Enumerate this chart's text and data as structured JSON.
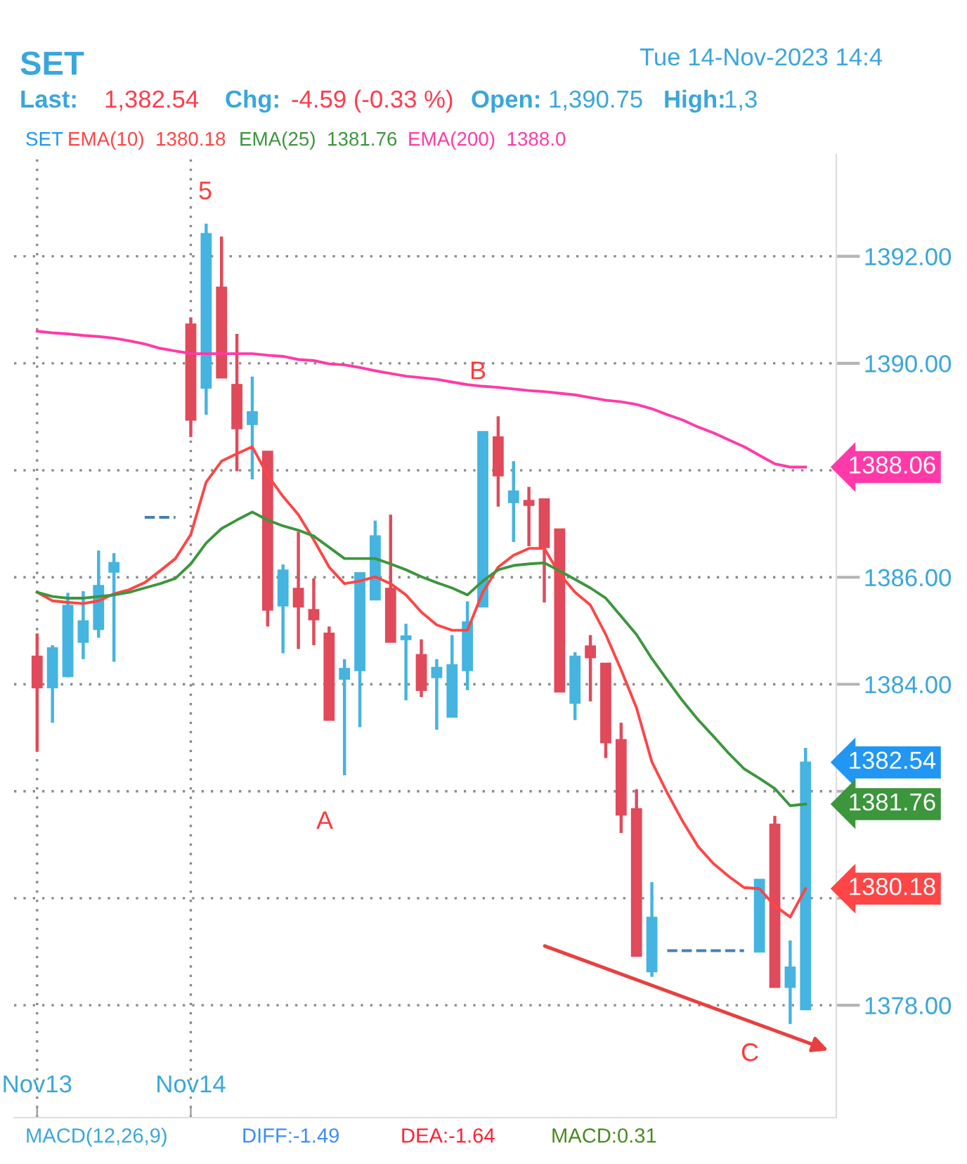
{
  "chart_data": {
    "type": "candlestick",
    "title": "SET",
    "categories": [
      "Nov13",
      null,
      null,
      null,
      null,
      null,
      null,
      null,
      null,
      null,
      "Nov14",
      null,
      null,
      null,
      null,
      null,
      null,
      null,
      null,
      null,
      null,
      null,
      null,
      null,
      null,
      null,
      null,
      null,
      null,
      null,
      null,
      null,
      null,
      null,
      null,
      null,
      null,
      null,
      null,
      null,
      null,
      null,
      null,
      null,
      null,
      null,
      null,
      null,
      null,
      null,
      null
    ],
    "series": [
      {
        "name": "SET",
        "color": "#2196f3",
        "ohlc": [
          [
            1384.52,
            1384.95,
            1382.75,
            1383.94
          ],
          [
            1383.94,
            1384.73,
            1383.28,
            1384.68
          ],
          [
            1384.15,
            1385.71,
            1384.13,
            1385.47
          ],
          [
            1384.79,
            1385.74,
            1384.47,
            1385.18
          ],
          [
            1385.03,
            1386.5,
            1384.87,
            1385.84
          ],
          [
            1386.1,
            1386.45,
            1384.42,
            1386.27
          ],
          null,
          null,
          null,
          null,
          [
            1390.73,
            1390.86,
            1388.62,
            1388.94
          ],
          [
            1389.54,
            1392.61,
            1389.04,
            1392.42
          ],
          [
            1391.42,
            1392.37,
            1389.73,
            1389.73
          ],
          [
            1389.6,
            1390.55,
            1387.98,
            1388.78
          ],
          [
            1388.86,
            1389.75,
            1387.83,
            1389.09
          ],
          [
            1388.35,
            1388.35,
            1385.08,
            1385.39
          ],
          [
            1385.47,
            1386.24,
            1384.58,
            1386.13
          ],
          [
            1385.79,
            1386.85,
            1384.66,
            1385.45
          ],
          [
            1385.39,
            1385.98,
            1384.73,
            1385.21
          ],
          [
            1384.95,
            1385.08,
            1383.33,
            1383.33
          ],
          [
            1384.1,
            1384.47,
            1382.3,
            1384.29
          ],
          [
            1384.26,
            1386.08,
            1383.2,
            1386.08
          ],
          [
            1385.58,
            1387.06,
            1385.58,
            1386.77
          ],
          [
            1385.79,
            1387.17,
            1384.79,
            1384.79
          ],
          [
            1384.84,
            1385.13,
            1383.7,
            1384.9
          ],
          [
            1384.55,
            1384.84,
            1383.76,
            1383.89
          ],
          [
            1384.13,
            1384.47,
            1383.15,
            1384.31
          ],
          [
            1383.39,
            1384.92,
            1383.39,
            1384.36
          ],
          [
            1384.26,
            1385.55,
            1383.89,
            1385.16
          ],
          [
            1385.45,
            1388.72,
            1385.45,
            1388.72
          ],
          [
            1388.62,
            1389.01,
            1387.32,
            1387.9
          ],
          [
            1387.4,
            1388.17,
            1386.66,
            1387.61
          ],
          [
            1387.43,
            1387.69,
            1386.58,
            1387.35
          ],
          [
            1387.46,
            1387.46,
            1385.53,
            1386.56
          ],
          [
            1386.9,
            1386.9,
            1383.86,
            1383.86
          ],
          [
            1383.65,
            1384.6,
            1383.33,
            1384.52
          ],
          [
            1384.71,
            1384.92,
            1383.68,
            1384.5
          ],
          [
            1384.39,
            1384.39,
            1382.62,
            1382.91
          ],
          [
            1382.96,
            1383.28,
            1381.22,
            1381.56
          ],
          [
            1381.67,
            1382.04,
            1378.92,
            1378.92
          ],
          [
            1378.63,
            1380.3,
            1378.53,
            1379.64
          ],
          null,
          null,
          null,
          null,
          null,
          null,
          [
            1379.0,
            1380.35,
            1379.0,
            1380.35
          ],
          [
            1381.38,
            1381.54,
            1378.34,
            1378.34
          ],
          [
            1378.34,
            1379.21,
            1377.65,
            1378.71
          ],
          [
            1377.92,
            1382.81,
            1377.92,
            1382.54
          ]
        ],
        "colors": [
          "#e04a5a",
          "#45b4e0",
          "#45b4e0",
          "#45b4e0",
          "#45b4e0",
          "#45b4e0",
          null,
          null,
          null,
          null,
          "#e04a5a",
          "#45b4e0",
          "#e04a5a",
          "#e04a5a",
          "#45b4e0",
          "#e04a5a",
          "#45b4e0",
          "#e04a5a",
          "#e04a5a",
          "#e04a5a",
          "#45b4e0",
          "#45b4e0",
          "#45b4e0",
          "#e04a5a",
          "#45b4e0",
          "#e04a5a",
          "#45b4e0",
          "#45b4e0",
          "#45b4e0",
          "#45b4e0",
          "#e04a5a",
          "#45b4e0",
          "#e04a5a",
          "#e04a5a",
          "#e04a5a",
          "#45b4e0",
          "#e04a5a",
          "#e04a5a",
          "#e04a5a",
          "#e04a5a",
          "#45b4e0",
          null,
          null,
          null,
          null,
          null,
          null,
          "#45b4e0",
          "#e04a5a",
          "#45b4e0",
          "#45b4e0"
        ],
        "value_labels": [
          null,
          null,
          null,
          null,
          null,
          null,
          null,
          null,
          null,
          null,
          null,
          null,
          null,
          null,
          null,
          null,
          null,
          null,
          null,
          null,
          null,
          null,
          null,
          null,
          null,
          null,
          null,
          null,
          null,
          null,
          null,
          null,
          null,
          null,
          null,
          null,
          null,
          null,
          null,
          null,
          null,
          null,
          null,
          null,
          null,
          null,
          null,
          null,
          null,
          null,
          "1382.54"
        ]
      },
      {
        "name": "EMA(10)  1380.18",
        "type": "line",
        "color": "#ff4545",
        "values": [
          1385.72,
          1385.56,
          1385.53,
          1385.51,
          1385.56,
          1385.69,
          1385.77,
          1385.9,
          1386.12,
          1386.35,
          1386.8,
          1387.78,
          1388.17,
          1388.31,
          1388.44,
          1387.91,
          1387.51,
          1387.17,
          1386.7,
          1386.19,
          1385.88,
          1385.93,
          1386.01,
          1385.88,
          1385.67,
          1385.35,
          1385.11,
          1385.01,
          1385.01,
          1385.72,
          1386.19,
          1386.41,
          1386.54,
          1386.54,
          1386.06,
          1385.72,
          1385.48,
          1384.93,
          1384.27,
          1383.56,
          1382.55,
          1381.97,
          1381.44,
          1380.97,
          1380.65,
          1380.41,
          1380.2,
          1380.18,
          1379.86,
          1379.65,
          1380.18
        ],
        "value_labels": [
          null,
          null,
          null,
          null,
          null,
          null,
          null,
          null,
          null,
          null,
          null,
          null,
          null,
          null,
          null,
          null,
          null,
          null,
          null,
          null,
          null,
          null,
          null,
          null,
          null,
          null,
          null,
          null,
          null,
          null,
          null,
          null,
          null,
          null,
          null,
          null,
          null,
          null,
          null,
          null,
          null,
          null,
          null,
          null,
          null,
          null,
          null,
          null,
          null,
          null,
          "1380.18"
        ]
      },
      {
        "name": "EMA(25)  1381.76",
        "type": "line",
        "color": "#3c963c",
        "values": [
          1385.72,
          1385.64,
          1385.61,
          1385.61,
          1385.64,
          1385.67,
          1385.72,
          1385.8,
          1385.88,
          1385.98,
          1386.25,
          1386.64,
          1386.91,
          1387.07,
          1387.22,
          1387.07,
          1386.96,
          1386.88,
          1386.77,
          1386.56,
          1386.35,
          1386.35,
          1386.35,
          1386.25,
          1386.14,
          1386.01,
          1385.9,
          1385.8,
          1385.67,
          1385.93,
          1386.14,
          1386.22,
          1386.25,
          1386.27,
          1386.12,
          1385.96,
          1385.8,
          1385.61,
          1385.27,
          1384.93,
          1384.48,
          1384.08,
          1383.69,
          1383.34,
          1383.03,
          1382.71,
          1382.42,
          1382.24,
          1382.05,
          1381.73,
          1381.76
        ],
        "value_labels": [
          null,
          null,
          null,
          null,
          null,
          null,
          null,
          null,
          null,
          null,
          null,
          null,
          null,
          null,
          null,
          null,
          null,
          null,
          null,
          null,
          null,
          null,
          null,
          null,
          null,
          null,
          null,
          null,
          null,
          null,
          null,
          null,
          null,
          null,
          null,
          null,
          null,
          null,
          null,
          null,
          null,
          null,
          null,
          null,
          null,
          null,
          null,
          null,
          null,
          null,
          "1381.76"
        ]
      },
      {
        "name": "EMA(200)  1388.0",
        "type": "line",
        "color": "#ff3aa8",
        "values": [
          1390.6,
          1390.57,
          1390.55,
          1390.52,
          1390.5,
          1390.47,
          1390.42,
          1390.36,
          1390.28,
          1390.23,
          1390.18,
          1390.18,
          1390.18,
          1390.18,
          1390.18,
          1390.15,
          1390.13,
          1390.07,
          1390.05,
          1389.99,
          1389.97,
          1389.92,
          1389.86,
          1389.81,
          1389.76,
          1389.73,
          1389.7,
          1389.65,
          1389.6,
          1389.57,
          1389.55,
          1389.52,
          1389.49,
          1389.47,
          1389.44,
          1389.41,
          1389.36,
          1389.31,
          1389.28,
          1389.23,
          1389.15,
          1389.04,
          1388.94,
          1388.81,
          1388.7,
          1388.57,
          1388.44,
          1388.28,
          1388.12,
          1388.06,
          1388.06
        ],
        "value_labels": [
          null,
          null,
          null,
          null,
          null,
          null,
          null,
          null,
          null,
          null,
          null,
          null,
          null,
          null,
          null,
          null,
          null,
          null,
          null,
          null,
          null,
          null,
          null,
          null,
          null,
          null,
          null,
          null,
          null,
          null,
          null,
          null,
          null,
          null,
          null,
          null,
          null,
          null,
          null,
          null,
          null,
          null,
          null,
          null,
          null,
          null,
          null,
          null,
          null,
          null,
          "1388.06"
        ]
      },
      {
        "type": "line",
        "color": "#4a7fb0",
        "line_style": "dashed",
        "values": [
          null,
          null,
          null,
          null,
          null,
          null,
          null,
          1387.12,
          1387.12,
          1387.12,
          null,
          null,
          null,
          null,
          null,
          null,
          null,
          null,
          null,
          null,
          null,
          null,
          null,
          null,
          null,
          null,
          null,
          null,
          null,
          null,
          null,
          null,
          null,
          null,
          null,
          null,
          null,
          null,
          null,
          null,
          null,
          1379.02,
          1379.02,
          1379.02,
          1379.02,
          1379.02,
          1379.02,
          null,
          null,
          null,
          null
        ]
      }
    ],
    "ylim": [
      1375.9,
      1393.9
    ],
    "yticks": [
      {
        "value": 1378,
        "label": "1378.00"
      },
      {
        "value": 1380,
        "label": null
      },
      {
        "value": 1382,
        "label": null
      },
      {
        "value": 1384,
        "label": "1384.00"
      },
      {
        "value": 1386,
        "label": "1386.00"
      },
      {
        "value": 1388,
        "label": null
      },
      {
        "value": 1390,
        "label": "1390.00"
      },
      {
        "value": 1392,
        "label": "1392.00"
      }
    ],
    "grid": true,
    "legend": "top left",
    "annotations": [
      "Tue 14-Nov-2023 14:4",
      "Last:",
      "1,382.54",
      "Chg:",
      "-4.59 (-0.33 %)",
      "Open:",
      "1,390.75",
      "High:",
      "1,3",
      "5",
      "B",
      "A",
      "C",
      "MACD(12,26,9)",
      "DIFF:-1.49",
      "DEA:-1.64",
      "MACD:0.31"
    ]
  }
}
